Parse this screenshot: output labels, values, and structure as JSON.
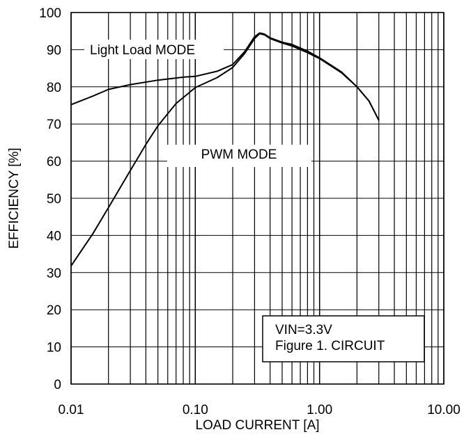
{
  "chart_data": {
    "type": "line",
    "xlabel": "LOAD CURRENT [A]",
    "ylabel": "EFFICIENCY [%]",
    "x_scale": "log",
    "xlim": [
      0.01,
      10
    ],
    "ylim": [
      0,
      100
    ],
    "grid": true,
    "x_tick_labels": [
      {
        "value": 0.01,
        "label": "0.01"
      },
      {
        "value": 0.1,
        "label": "0.10"
      },
      {
        "value": 1,
        "label": "1.00"
      },
      {
        "value": 10,
        "label": "10.00"
      }
    ],
    "y_ticks": [
      0,
      10,
      20,
      30,
      40,
      50,
      60,
      70,
      80,
      90,
      100
    ],
    "series": [
      {
        "name": "Light Load MODE",
        "color": "#000000",
        "x": [
          0.01,
          0.015,
          0.02,
          0.03,
          0.05,
          0.08,
          0.1,
          0.15,
          0.2,
          0.25,
          0.3,
          0.33,
          0.36,
          0.4,
          0.5,
          0.6,
          0.8,
          1.0,
          1.5,
          2.0,
          2.5,
          3.0
        ],
        "y": [
          75.2,
          77.5,
          79.3,
          80.6,
          81.8,
          82.6,
          82.8,
          84.2,
          86.0,
          89.5,
          93.5,
          94.5,
          94.2,
          93.2,
          92.0,
          91.4,
          89.6,
          87.8,
          84.0,
          80.0,
          76.2,
          71.0
        ]
      },
      {
        "name": "PWM MODE",
        "color": "#000000",
        "x": [
          0.01,
          0.015,
          0.02,
          0.03,
          0.04,
          0.05,
          0.07,
          0.1,
          0.15,
          0.2,
          0.25,
          0.3,
          0.33,
          0.36,
          0.4,
          0.5,
          0.6,
          0.8,
          1.0,
          1.5,
          2.0,
          2.5,
          3.0
        ],
        "y": [
          31.8,
          40.5,
          47.5,
          57.5,
          64.5,
          69.5,
          75.5,
          79.8,
          82.5,
          85.2,
          89.0,
          93.0,
          94.3,
          94.0,
          93.0,
          91.8,
          91.0,
          89.2,
          87.6,
          83.8,
          80.0,
          76.2,
          71.0
        ]
      }
    ],
    "annotations": {
      "light_load_label": "Light Load MODE",
      "pwm_label": "PWM MODE",
      "box_line1": "VIN=3.3V",
      "box_line2": "Figure 1. CIRCUIT"
    }
  }
}
